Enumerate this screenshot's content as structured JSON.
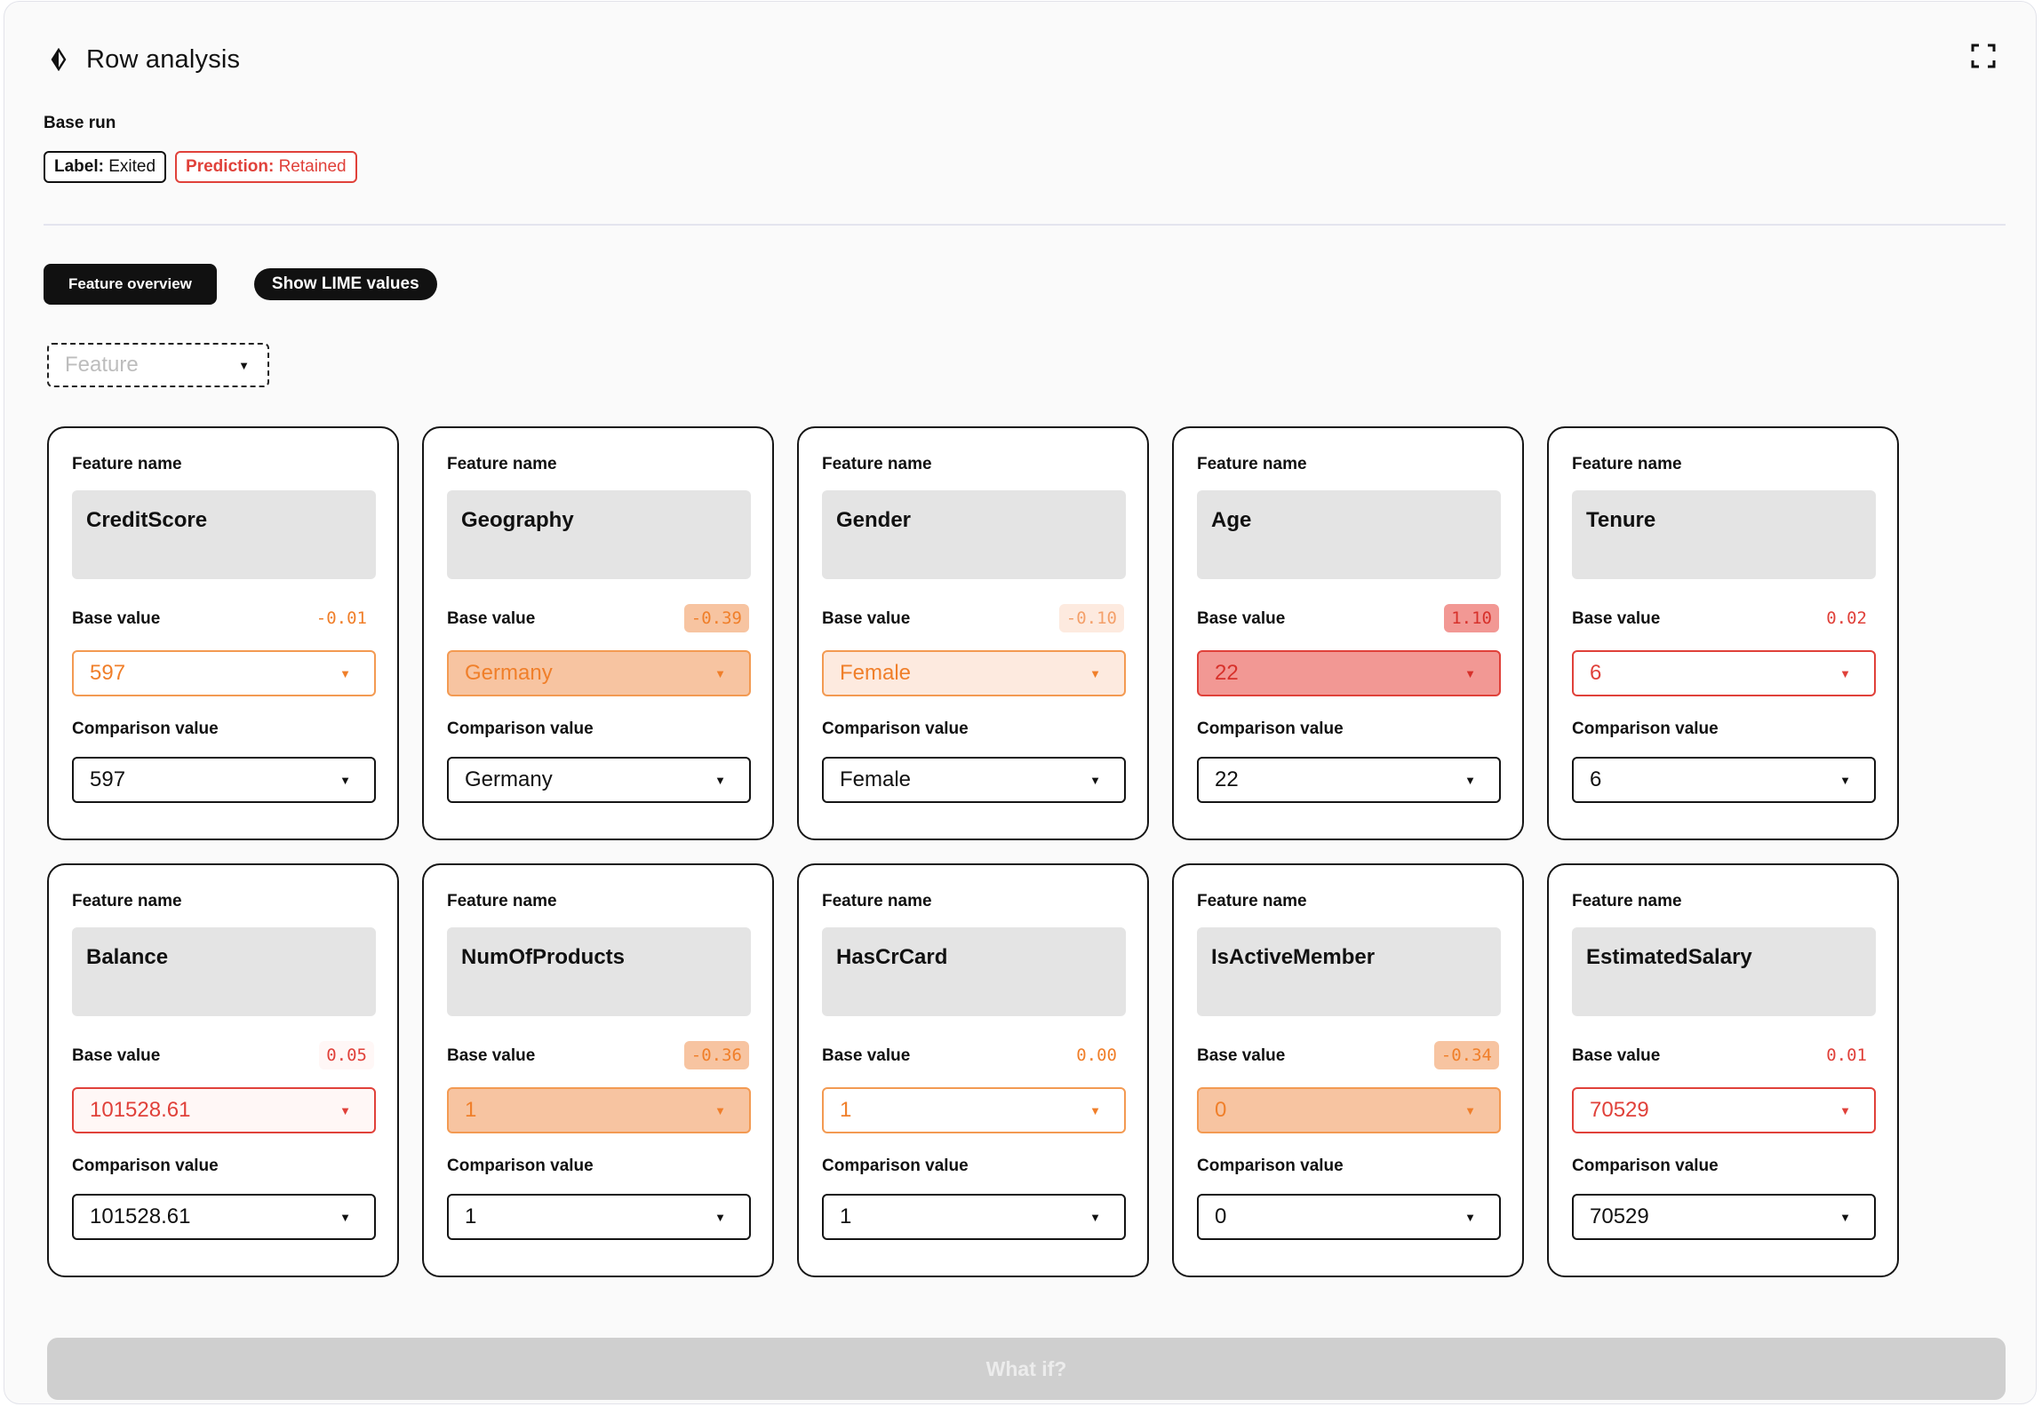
{
  "header": {
    "title": "Row analysis",
    "icon": "diamond-icon",
    "expand_icon": "expand-icon"
  },
  "base_run": {
    "heading": "Base run",
    "label_key": "Label:",
    "label_value": "Exited",
    "prediction_key": "Prediction:",
    "prediction_value": "Retained",
    "prediction_color": "#e0413a"
  },
  "tabs": {
    "feature_overview": "Feature overview",
    "show_lime": "Show LIME values"
  },
  "feature_filter": {
    "placeholder": "Feature"
  },
  "labels": {
    "feature_name": "Feature name",
    "base_value": "Base value",
    "comparison_value": "Comparison value"
  },
  "features": [
    {
      "name": "CreditScore",
      "lime": "-0.01",
      "base": "597",
      "comparison": "597",
      "tone": "orange-light"
    },
    {
      "name": "Geography",
      "lime": "-0.39",
      "base": "Germany",
      "comparison": "Germany",
      "tone": "orange-strong"
    },
    {
      "name": "Gender",
      "lime": "-0.10",
      "base": "Female",
      "comparison": "Female",
      "tone": "orange-soft"
    },
    {
      "name": "Age",
      "lime": "1.10",
      "base": "22",
      "comparison": "22",
      "tone": "red-strong"
    },
    {
      "name": "Tenure",
      "lime": "0.02",
      "base": "6",
      "comparison": "6",
      "tone": "red-light"
    },
    {
      "name": "Balance",
      "lime": "0.05",
      "base": "101528.61",
      "comparison": "101528.61",
      "tone": "red-soft"
    },
    {
      "name": "NumOfProducts",
      "lime": "-0.36",
      "base": "1",
      "comparison": "1",
      "tone": "orange-strong"
    },
    {
      "name": "HasCrCard",
      "lime": "0.00",
      "base": "1",
      "comparison": "1",
      "tone": "orange-light"
    },
    {
      "name": "IsActiveMember",
      "lime": "-0.34",
      "base": "0",
      "comparison": "0",
      "tone": "orange-strong"
    },
    {
      "name": "EstimatedSalary",
      "lime": "0.01",
      "base": "70529",
      "comparison": "70529",
      "tone": "red-light"
    }
  ],
  "tones": {
    "orange-light": {
      "border": "#f39a52",
      "fill": "#ffffff",
      "text": "#f07f2a",
      "badge": "transparent",
      "badgeText": "#f07f2a"
    },
    "orange-soft": {
      "border": "#f39a52",
      "fill": "#fdeadf",
      "text": "#f07f2a",
      "badge": "#fdeadf",
      "badgeText": "#f4a06a"
    },
    "orange-strong": {
      "border": "#f39a52",
      "fill": "#f7c4a1",
      "text": "#f07f2a",
      "badge": "#f7c4a1",
      "badgeText": "#f07f2a"
    },
    "red-light": {
      "border": "#e0413a",
      "fill": "#ffffff",
      "text": "#e0413a",
      "badge": "transparent",
      "badgeText": "#e0413a"
    },
    "red-soft": {
      "border": "#e0413a",
      "fill": "#fff7f6",
      "text": "#e0413a",
      "badge": "#fff7f6",
      "badgeText": "#e0413a"
    },
    "red-strong": {
      "border": "#e0413a",
      "fill": "#f29894",
      "text": "#d7312b",
      "badge": "#f29894",
      "badgeText": "#d7312b"
    }
  },
  "what_if": "What if?"
}
